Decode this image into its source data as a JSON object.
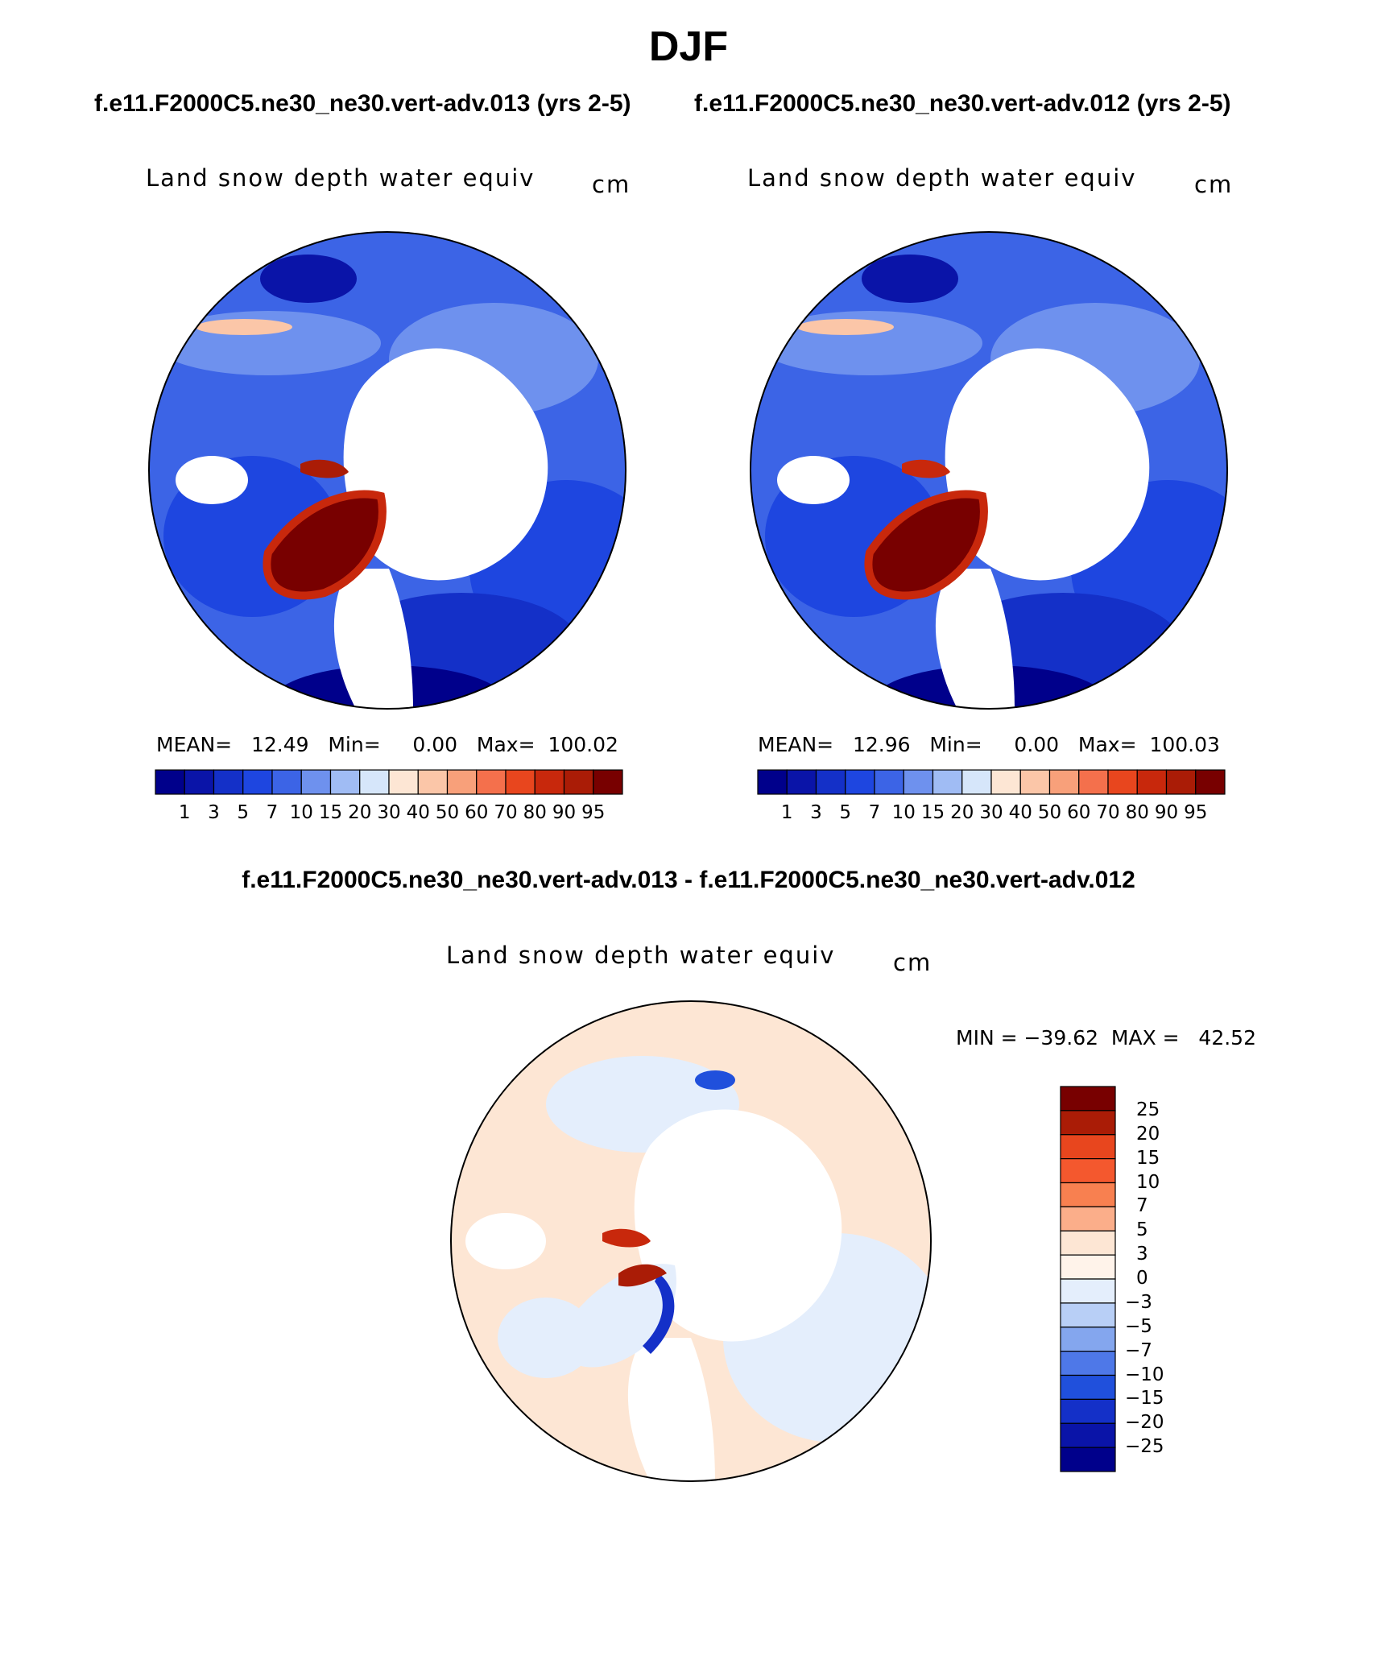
{
  "figure": {
    "title": "DJF",
    "subtitle_left": "f.e11.F2000C5.ne30_ne30.vert-adv.013 (yrs 2-5)",
    "subtitle_right": "f.e11.F2000C5.ne30_ne30.vert-adv.012 (yrs 2-5)",
    "diff_title": "f.e11.F2000C5.ne30_ne30.vert-adv.013 - f.e11.F2000C5.ne30_ne30.vert-adv.012"
  },
  "panels": [
    {
      "id": "case-013",
      "variable": "Land snow depth water equiv",
      "units": "cm",
      "stats": "MEAN=   12.49   Min=     0.00   Max=  100.02"
    },
    {
      "id": "case-012",
      "variable": "Land snow depth water equiv",
      "units": "cm",
      "stats": "MEAN=   12.96   Min=     0.00   Max=  100.03"
    },
    {
      "id": "difference",
      "variable": "Land snow depth water equiv",
      "units": "cm",
      "stats": "MIN = −39.62  MAX =   42.52"
    }
  ],
  "colorbar_abs": {
    "labels": [
      "1",
      "3",
      "5",
      "7",
      "10",
      "15",
      "20",
      "30",
      "40",
      "50",
      "60",
      "70",
      "80",
      "90",
      "95"
    ],
    "colors": [
      "#00008b",
      "#0a14a8",
      "#1430c8",
      "#1e46e0",
      "#3c64e6",
      "#6e91ee",
      "#a0bcf4",
      "#d6e6fa",
      "#fde6d4",
      "#fbc6a8",
      "#f8a07a",
      "#f4704c",
      "#e8461e",
      "#c8280c",
      "#aa1c06",
      "#780000"
    ]
  },
  "colorbar_diff": {
    "labels": [
      "25",
      "20",
      "15",
      "10",
      "7",
      "5",
      "3",
      "0",
      "−3",
      "−5",
      "−7",
      "−10",
      "−15",
      "−20",
      "−25"
    ],
    "colors": [
      "#780000",
      "#aa1c06",
      "#e8461e",
      "#f4582e",
      "#f88050",
      "#fbae8a",
      "#fde6d4",
      "#fff3ea",
      "#e4eefc",
      "#b8cff6",
      "#84a6ee",
      "#4e78e8",
      "#2050dc",
      "#1430c8",
      "#0a14a8",
      "#00008b"
    ]
  }
}
